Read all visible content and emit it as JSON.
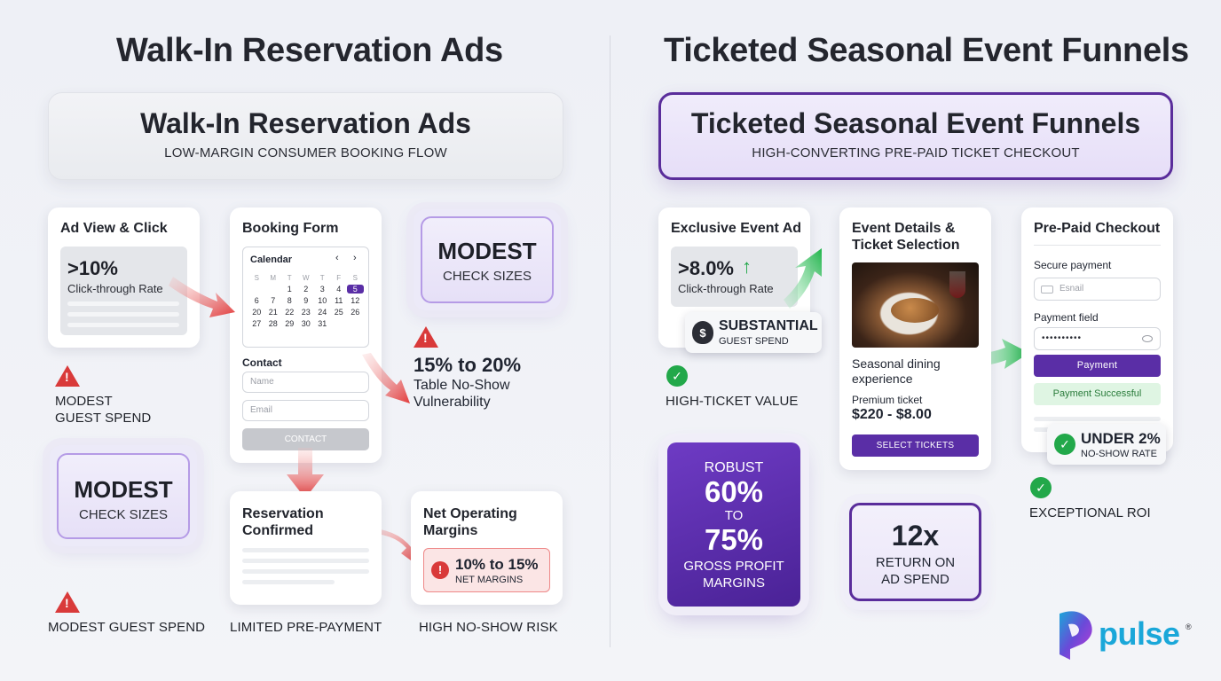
{
  "left": {
    "title": "Walk-In Reservation Ads",
    "banner_title": "Walk-In Reservation Ads",
    "banner_subtitle": "LOW-MARGIN CONSUMER BOOKING FLOW",
    "ad_card": {
      "title": "Ad View & Click",
      "stat": ">10%",
      "stat_label": "Click-through Rate"
    },
    "booking_card": {
      "title": "Booking Form",
      "calendar_label": "Calendar",
      "weekdays": [
        "S",
        "M",
        "T",
        "W",
        "T",
        "F",
        "S"
      ],
      "days": [
        "",
        "",
        "1",
        "2",
        "3",
        "4",
        "5",
        "6",
        "7",
        "8",
        "9",
        "10",
        "11",
        "12",
        "20",
        "21",
        "22",
        "23",
        "24",
        "25",
        "26",
        "27",
        "28",
        "29",
        "30",
        "31",
        "",
        ""
      ],
      "selected_day": "5",
      "contact_label": "Contact",
      "name_placeholder": "Name",
      "email_placeholder": "Email",
      "contact_button": "CONTACT"
    },
    "modest_top": {
      "line1": "MODEST",
      "line2": "CHECK SIZES"
    },
    "warning_mid": {
      "stat": "15% to 20%",
      "line1": "Table No-Show",
      "line2": "Vulnerability"
    },
    "warning_guest": {
      "line1": "MODEST",
      "line2": "GUEST SPEND"
    },
    "modest_left": {
      "line1": "MODEST",
      "line2": "CHECK SIZES"
    },
    "confirmed_card": {
      "title1": "Reservation",
      "title2": "Confirmed"
    },
    "margins_card": {
      "title1": "Net Operating",
      "title2": "Margins",
      "stat": "10% to 15%",
      "stat_label": "NET MARGINS"
    },
    "bottom_labels": [
      "MODEST GUEST SPEND",
      "LIMITED PRE-PAYMENT",
      "HIGH NO-SHOW RISK"
    ]
  },
  "right": {
    "title": "Ticketed Seasonal Event Funnels",
    "banner_title": "Ticketed Seasonal Event Funnels",
    "banner_subtitle": "HIGH-CONVERTING PRE-PAID TICKET CHECKOUT",
    "ad_card": {
      "title": "Exclusive Event Ad",
      "stat": ">8.0%",
      "stat_label": "Click-through Rate",
      "arrow_icon": "up-arrow-icon"
    },
    "spend_badge": {
      "line1": "SUBSTANTIAL",
      "line2": "GUEST SPEND"
    },
    "high_ticket_label": "HIGH-TICKET VALUE",
    "event_card": {
      "title1": "Event Details &",
      "title2": "Ticket Selection",
      "desc1": "Seasonal dining",
      "desc2": "experience",
      "ticket_label": "Premium ticket",
      "price": "$220 - $8.00",
      "button": "SELECT TICKETS"
    },
    "checkout_card": {
      "title": "Pre-Paid Checkout",
      "secure_label": "Secure payment",
      "email_placeholder": "Esnail",
      "payment_label": "Payment field",
      "payment_value": "••••••••••",
      "pay_button": "Payment",
      "success": "Payment Successful"
    },
    "noshow_badge": {
      "line1": "UNDER 2%",
      "line2": "NO-SHOW RATE"
    },
    "roi_label": "EXCEPTIONAL ROI",
    "robust": {
      "l1": "ROBUST",
      "l2": "60%",
      "l3": "TO",
      "l4": "75%",
      "l5": "GROSS PROFIT",
      "l6": "MARGINS"
    },
    "roas": {
      "l1": "12x",
      "l2": "RETURN ON",
      "l3": "AD SPEND"
    },
    "logo_text": "pulse",
    "logo_mark": "®"
  },
  "colors": {
    "purple": "#5a2ea6",
    "red": "#d93a3a",
    "green": "#22a84a",
    "logo_cyan": "#1aa7d9",
    "logo_magenta": "#c33bd6"
  }
}
